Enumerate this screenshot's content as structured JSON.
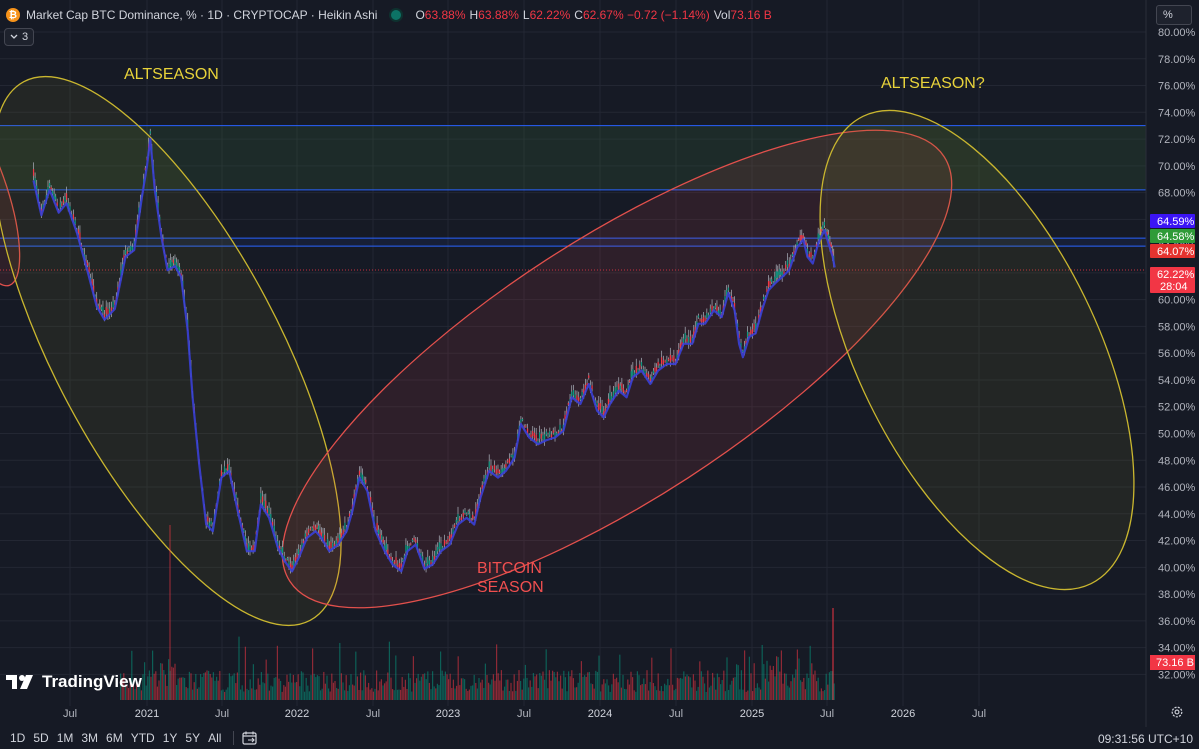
{
  "header": {
    "symbol_title": "Market Cap BTC Dominance, % · 1D · CRYPTOCAP · Heikin Ashi",
    "ohlc": [
      {
        "key": "O",
        "value": "63.88%"
      },
      {
        "key": "H",
        "value": "63.88%"
      },
      {
        "key": "L",
        "value": "62.22%"
      },
      {
        "key": "C",
        "value": "62.67%"
      },
      {
        "key": "",
        "value": "−0.72 (−1.14%)"
      },
      {
        "key": "Vol",
        "value": "73.16 B"
      }
    ],
    "indicator_count": "3",
    "scale_button": "%"
  },
  "logo": {
    "text": "TradingView"
  },
  "toolbar": {
    "timeframes": [
      "1D",
      "5D",
      "1M",
      "3M",
      "6M",
      "YTD",
      "1Y",
      "5Y",
      "All"
    ],
    "clock": "09:31:56 UTC+10"
  },
  "colors": {
    "background": "#161a25",
    "grid": "#232733",
    "up": "#089981",
    "down": "#f23645",
    "altseason_ellipse": "#c9b62f",
    "bitcoin_season_ellipse": "#e2504c",
    "zone_line": "#2962ff",
    "ma_line": "#3a3fd6"
  },
  "chart_data": {
    "type": "line",
    "title": "Market Cap BTC Dominance, %",
    "x_axis": {
      "tick_labels": [
        "Jul",
        "2021",
        "Jul",
        "2022",
        "Jul",
        "2023",
        "Jul",
        "2024",
        "Jul",
        "2025",
        "Jul",
        "2026",
        "Jul"
      ]
    },
    "y_axis": {
      "unit": "%",
      "tick_labels": [
        "80.00%",
        "78.00%",
        "76.00%",
        "74.00%",
        "72.00%",
        "70.00%",
        "68.00%",
        "66.00%",
        "64.00%",
        "62.00%",
        "60.00%",
        "58.00%",
        "56.00%",
        "54.00%",
        "52.00%",
        "50.00%",
        "48.00%",
        "46.00%",
        "44.00%",
        "42.00%",
        "40.00%",
        "38.00%",
        "36.00%",
        "34.00%",
        "32.00%"
      ],
      "ylim": [
        31,
        80.4
      ]
    },
    "series": [
      {
        "name": "Market Cap BTC Dominance, %",
        "type": "line",
        "points": [
          [
            "2020-04-01",
            69.2
          ],
          [
            "2020-04-20",
            66.6
          ],
          [
            "2020-05-10",
            68.5
          ],
          [
            "2020-06-01",
            66.8
          ],
          [
            "2020-06-20",
            67.5
          ],
          [
            "2020-07-15",
            65.3
          ],
          [
            "2020-08-10",
            62.4
          ],
          [
            "2020-09-01",
            59.8
          ],
          [
            "2020-09-20",
            58.8
          ],
          [
            "2020-10-15",
            59.6
          ],
          [
            "2020-11-10",
            63.5
          ],
          [
            "2020-12-01",
            64.0
          ],
          [
            "2020-12-20",
            68.0
          ],
          [
            "2021-01-01",
            70.3
          ],
          [
            "2021-01-09",
            72.3
          ],
          [
            "2021-01-20",
            68.5
          ],
          [
            "2021-02-05",
            65.0
          ],
          [
            "2021-02-20",
            62.5
          ],
          [
            "2021-03-10",
            62.8
          ],
          [
            "2021-03-25",
            62.0
          ],
          [
            "2021-04-10",
            58.0
          ],
          [
            "2021-04-22",
            53.0
          ],
          [
            "2021-05-08",
            48.0
          ],
          [
            "2021-05-25",
            43.5
          ],
          [
            "2021-06-10",
            43.0
          ],
          [
            "2021-07-01",
            47.0
          ],
          [
            "2021-07-20",
            47.5
          ],
          [
            "2021-08-10",
            44.5
          ],
          [
            "2021-09-01",
            41.5
          ],
          [
            "2021-09-20",
            41.5
          ],
          [
            "2021-10-05",
            45.0
          ],
          [
            "2021-10-25",
            44.0
          ],
          [
            "2021-11-15",
            41.8
          ],
          [
            "2021-12-01",
            40.8
          ],
          [
            "2021-12-20",
            40.0
          ],
          [
            "2022-01-05",
            41.0
          ],
          [
            "2022-01-25",
            42.5
          ],
          [
            "2022-02-15",
            43.0
          ],
          [
            "2022-03-01",
            42.5
          ],
          [
            "2022-03-20",
            41.5
          ],
          [
            "2022-04-10",
            42.0
          ],
          [
            "2022-05-01",
            43.0
          ],
          [
            "2022-05-15",
            44.5
          ],
          [
            "2022-06-01",
            47.0
          ],
          [
            "2022-06-20",
            46.0
          ],
          [
            "2022-07-10",
            43.0
          ],
          [
            "2022-08-01",
            41.5
          ],
          [
            "2022-08-20",
            40.5
          ],
          [
            "2022-09-10",
            40.0
          ],
          [
            "2022-09-25",
            41.5
          ],
          [
            "2022-10-15",
            42.0
          ],
          [
            "2022-11-05",
            40.2
          ],
          [
            "2022-11-25",
            40.5
          ],
          [
            "2022-12-15",
            41.5
          ],
          [
            "2023-01-05",
            42.0
          ],
          [
            "2023-01-25",
            43.5
          ],
          [
            "2023-02-15",
            44.0
          ],
          [
            "2023-03-05",
            43.5
          ],
          [
            "2023-03-20",
            45.5
          ],
          [
            "2023-04-10",
            47.5
          ],
          [
            "2023-05-01",
            47.0
          ],
          [
            "2023-05-20",
            47.5
          ],
          [
            "2023-06-10",
            48.5
          ],
          [
            "2023-06-25",
            51.0
          ],
          [
            "2023-07-15",
            50.0
          ],
          [
            "2023-08-05",
            49.5
          ],
          [
            "2023-08-25",
            49.8
          ],
          [
            "2023-09-15",
            50.0
          ],
          [
            "2023-10-05",
            50.5
          ],
          [
            "2023-10-25",
            53.0
          ],
          [
            "2023-11-15",
            52.5
          ],
          [
            "2023-12-05",
            54.0
          ],
          [
            "2023-12-25",
            52.0
          ],
          [
            "2024-01-10",
            51.5
          ],
          [
            "2024-01-25",
            52.5
          ],
          [
            "2024-02-15",
            53.5
          ],
          [
            "2024-03-05",
            53.0
          ],
          [
            "2024-03-20",
            54.5
          ],
          [
            "2024-04-10",
            55.0
          ],
          [
            "2024-05-01",
            54.0
          ],
          [
            "2024-05-20",
            55.0
          ],
          [
            "2024-06-10",
            55.5
          ],
          [
            "2024-07-01",
            55.5
          ],
          [
            "2024-07-20",
            57.0
          ],
          [
            "2024-08-10",
            57.0
          ],
          [
            "2024-08-25",
            58.5
          ],
          [
            "2024-09-10",
            58.5
          ],
          [
            "2024-10-01",
            59.5
          ],
          [
            "2024-10-20",
            59.0
          ],
          [
            "2024-11-05",
            60.8
          ],
          [
            "2024-11-20",
            59.5
          ],
          [
            "2024-12-01",
            57.0
          ],
          [
            "2024-12-10",
            56.0
          ],
          [
            "2024-12-25",
            57.5
          ],
          [
            "2025-01-10",
            57.8
          ],
          [
            "2025-01-25",
            59.5
          ],
          [
            "2025-02-10",
            61.0
          ],
          [
            "2025-02-25",
            61.5
          ],
          [
            "2025-03-15",
            62.0
          ],
          [
            "2025-04-01",
            62.5
          ],
          [
            "2025-04-20",
            64.2
          ],
          [
            "2025-05-05",
            64.8
          ],
          [
            "2025-05-15",
            63.5
          ],
          [
            "2025-05-28",
            63.0
          ],
          [
            "2025-06-10",
            64.5
          ],
          [
            "2025-06-25",
            65.5
          ],
          [
            "2025-07-05",
            64.5
          ],
          [
            "2025-07-15",
            63.5
          ],
          [
            "2025-07-20",
            62.7
          ]
        ]
      },
      {
        "name": "Volume",
        "type": "bar",
        "unit": "B",
        "last_value": "73.16 B"
      }
    ],
    "price_labels": [
      {
        "value": "64.59%",
        "color": "#3b14f5"
      },
      {
        "value": "64.58%",
        "color": "#2f9b38"
      },
      {
        "value": "64.07%",
        "color": "#e5332f"
      },
      {
        "value": "62.22%",
        "sublabel": "28:04",
        "color": "#f23645"
      }
    ],
    "horizontal_zones": [
      {
        "upper": 73.0,
        "lower": 68.2,
        "color": "#2962ff"
      },
      {
        "upper": 64.6,
        "lower": 64.0,
        "color": "#2962ff"
      }
    ],
    "annotations": [
      {
        "text": "ALTSEASON",
        "color": "#e8d33a"
      },
      {
        "text": "ALTSEASON?",
        "color": "#e8d33a"
      },
      {
        "text": "BITCOIN SEASON",
        "lines": [
          "BITCOIN",
          "SEASON"
        ],
        "color": "#f04f4f"
      }
    ],
    "grid": true,
    "log_scale": false
  }
}
